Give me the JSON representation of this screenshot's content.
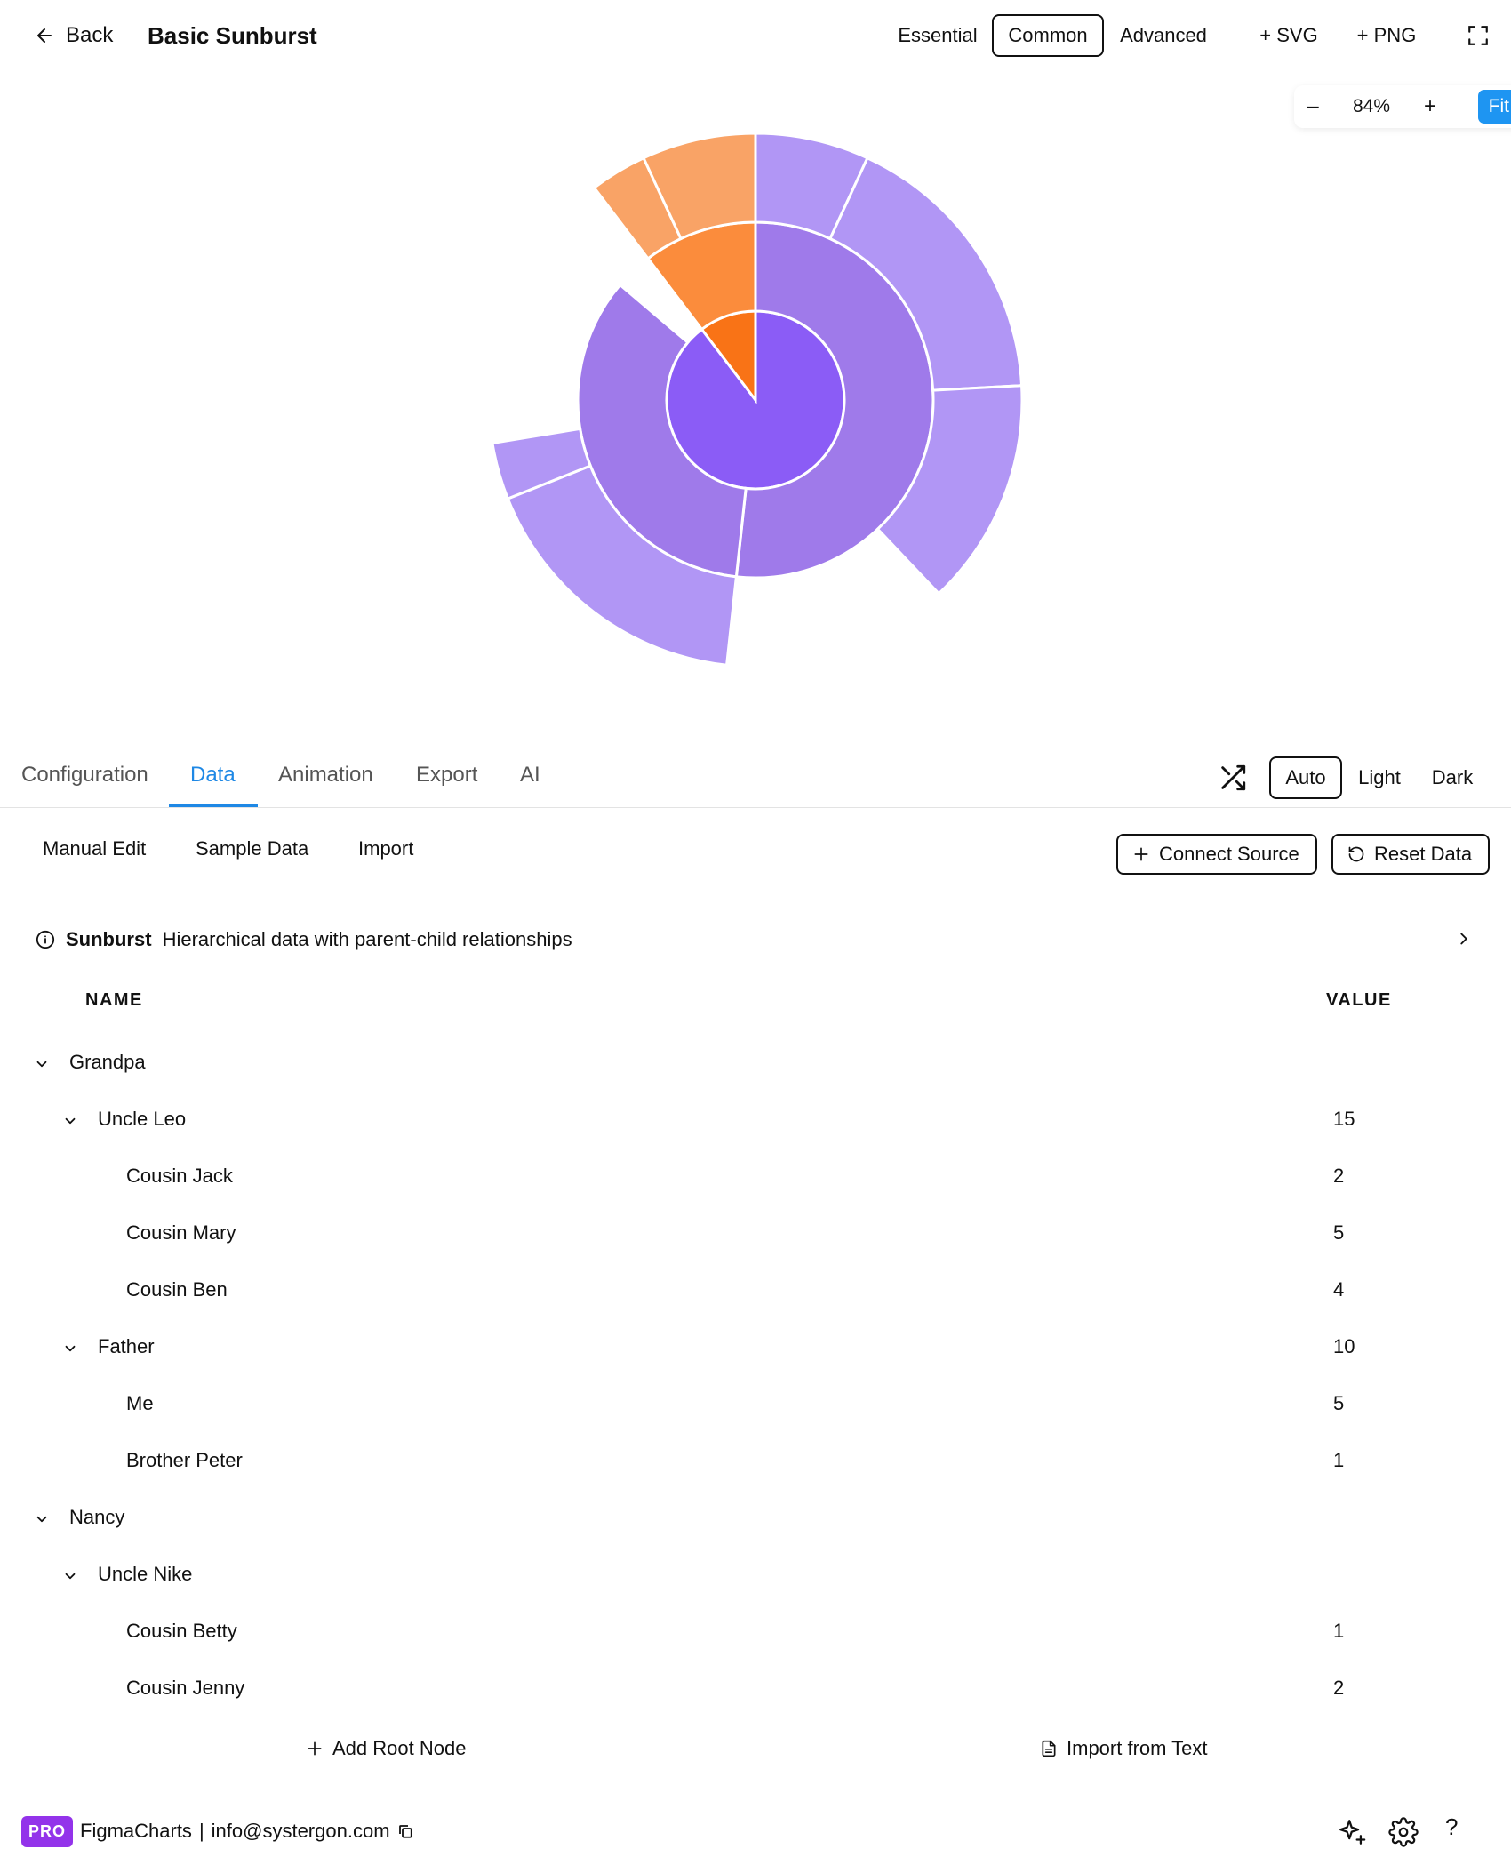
{
  "header": {
    "back_label": "Back",
    "title": "Basic Sunburst",
    "presets": [
      "Essential",
      "Common",
      "Advanced"
    ],
    "active_preset": "Common",
    "add_svg": "+ SVG",
    "add_png": "+ PNG"
  },
  "zoom": {
    "minus": "–",
    "value": "84%",
    "plus": "+",
    "fit": "Fit"
  },
  "tabs": [
    "Configuration",
    "Data",
    "Animation",
    "Export",
    "AI"
  ],
  "active_tab": "Data",
  "themes": [
    "Auto",
    "Light",
    "Dark"
  ],
  "active_theme": "Auto",
  "data_subtabs": [
    "Manual Edit",
    "Sample Data",
    "Import"
  ],
  "connect_source": "Connect Source",
  "reset_data": "Reset Data",
  "info": {
    "type": "Sunburst",
    "description": "Hierarchical data with parent-child relationships"
  },
  "table": {
    "name_header": "NAME",
    "value_header": "VALUE",
    "rows": [
      {
        "name": "Grandpa",
        "value": "",
        "level": 0,
        "expandable": true
      },
      {
        "name": "Uncle Leo",
        "value": "15",
        "level": 1,
        "expandable": true
      },
      {
        "name": "Cousin Jack",
        "value": "2",
        "level": 2,
        "expandable": false
      },
      {
        "name": "Cousin Mary",
        "value": "5",
        "level": 2,
        "expandable": false
      },
      {
        "name": "Cousin Ben",
        "value": "4",
        "level": 2,
        "expandable": false
      },
      {
        "name": "Father",
        "value": "10",
        "level": 1,
        "expandable": true
      },
      {
        "name": "Me",
        "value": "5",
        "level": 2,
        "expandable": false
      },
      {
        "name": "Brother Peter",
        "value": "1",
        "level": 2,
        "expandable": false
      },
      {
        "name": "Nancy",
        "value": "",
        "level": 0,
        "expandable": true
      },
      {
        "name": "Uncle Nike",
        "value": "",
        "level": 1,
        "expandable": true
      },
      {
        "name": "Cousin Betty",
        "value": "1",
        "level": 2,
        "expandable": false
      },
      {
        "name": "Cousin Jenny",
        "value": "2",
        "level": 2,
        "expandable": false
      }
    ]
  },
  "add_root_node": "Add Root Node",
  "import_from_text": "Import from Text",
  "footer": {
    "badge": "PRO",
    "brand": "FigmaCharts",
    "separator": "|",
    "email": "info@systergon.com",
    "help": "?"
  },
  "colors": {
    "accent": "#1e88e5",
    "fit_button": "#1e95f2",
    "pro_badge": "#9333ea"
  },
  "chart_data": {
    "type": "sunburst",
    "root": {
      "children": [
        {
          "name": "Grandpa",
          "value": 26,
          "color": "#8b5cf6",
          "children": [
            {
              "name": "Uncle Leo",
              "value": 15,
              "color": "#9f7aea",
              "children": [
                {
                  "name": "Cousin Jack",
                  "value": 2,
                  "color": "#b196f5"
                },
                {
                  "name": "Cousin Mary",
                  "value": 5,
                  "color": "#b196f5"
                },
                {
                  "name": "Cousin Ben",
                  "value": 4,
                  "color": "#b196f5"
                }
              ]
            },
            {
              "name": "Father",
              "value": 10,
              "color": "#9f7aea",
              "children": [
                {
                  "name": "Me",
                  "value": 5,
                  "color": "#b196f5"
                },
                {
                  "name": "Brother Peter",
                  "value": 1,
                  "color": "#b196f5"
                }
              ]
            }
          ]
        },
        {
          "name": "Nancy",
          "value": 3,
          "color": "#f97316",
          "children": [
            {
              "name": "Uncle Nike",
              "value": 3,
              "color": "#fb8c3c",
              "children": [
                {
                  "name": "Cousin Betty",
                  "value": 1,
                  "color": "#f9a366"
                },
                {
                  "name": "Cousin Jenny",
                  "value": 2,
                  "color": "#f9a366"
                }
              ]
            }
          ]
        }
      ]
    }
  }
}
